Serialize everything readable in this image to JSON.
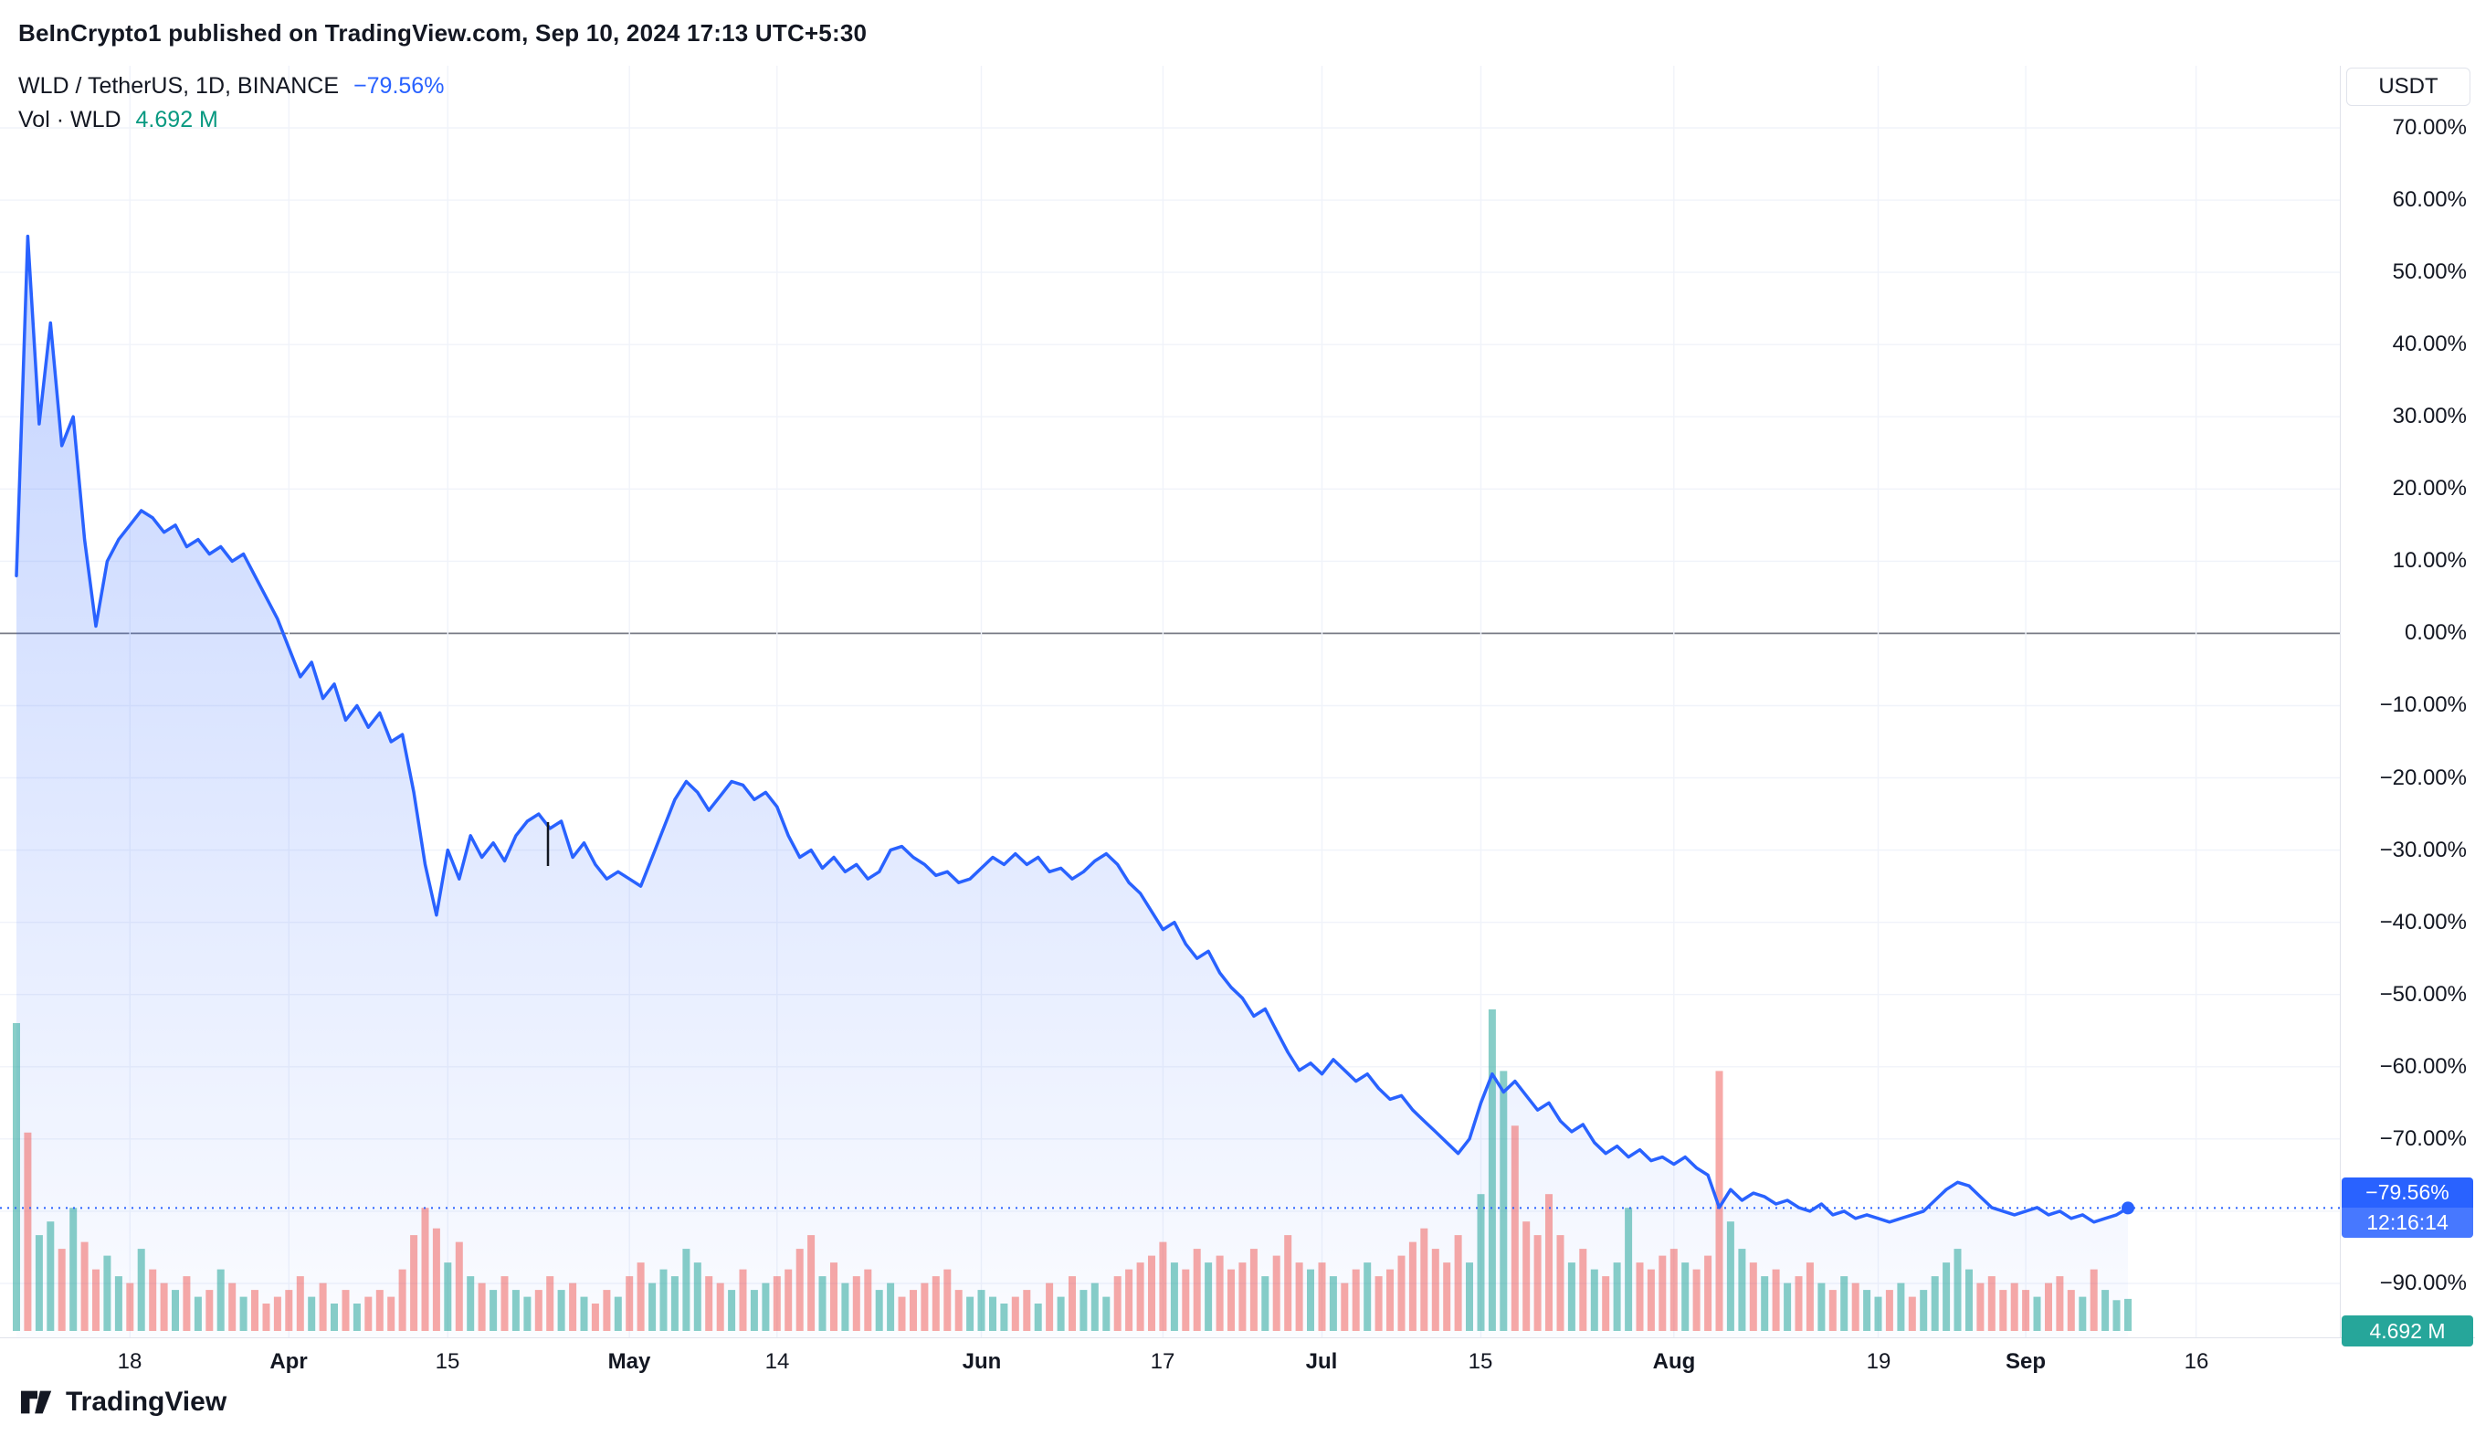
{
  "header": {
    "published_line": "BeInCrypto1 published on TradingView.com, Sep 10, 2024 17:13 UTC+5:30"
  },
  "legend": {
    "symbol_title": "WLD / TetherUS, 1D, BINANCE",
    "change_pct": "−79.56%",
    "volume_label": "Vol · WLD",
    "volume_value": "4.692 M"
  },
  "price_axis": {
    "currency_button": "USDT",
    "last_price_badge": {
      "label": "−79.56%",
      "countdown": "12:16:14"
    },
    "volume_badge": {
      "label": "4.692 M"
    }
  },
  "footer": {
    "brand": "TradingView"
  },
  "colors": {
    "line": "#2962ff",
    "area_top": "rgba(41,98,255,0.28)",
    "area_bottom": "rgba(41,98,255,0.02)",
    "vol_up": "rgba(38,166,154,0.55)",
    "vol_down": "rgba(239,83,80,0.5)",
    "grid": "#f0f3fa",
    "zero_line": "#787b86",
    "separator": "#e0e3eb",
    "price_badge_bg": "#2962ff",
    "volume_badge_bg": "#26a69a",
    "text": "#131722"
  },
  "chart_data": {
    "type": "line",
    "title": "WLD / TetherUS, 1D, BINANCE",
    "pair": "WLD/USDT",
    "interval": "1D",
    "exchange": "BINANCE",
    "y_unit": "percent change",
    "ylim": [
      -90,
      70
    ],
    "grid": true,
    "last_value_pct": -79.56,
    "last_countdown": "12:16:14",
    "current_volume_m": 4.692,
    "y_ticks": [
      {
        "value": 70,
        "label": "70.00%"
      },
      {
        "value": 60,
        "label": "60.00%"
      },
      {
        "value": 50,
        "label": "50.00%"
      },
      {
        "value": 40,
        "label": "40.00%"
      },
      {
        "value": 30,
        "label": "30.00%"
      },
      {
        "value": 20,
        "label": "20.00%"
      },
      {
        "value": 10,
        "label": "10.00%"
      },
      {
        "value": 0,
        "label": "0.00%"
      },
      {
        "value": -10,
        "label": "−10.00%"
      },
      {
        "value": -20,
        "label": "−20.00%"
      },
      {
        "value": -30,
        "label": "−30.00%"
      },
      {
        "value": -40,
        "label": "−40.00%"
      },
      {
        "value": -50,
        "label": "−50.00%"
      },
      {
        "value": -60,
        "label": "−60.00%"
      },
      {
        "value": -70,
        "label": "−70.00%"
      },
      {
        "value": -80,
        "label": "−80.00%"
      },
      {
        "value": -90,
        "label": "−90.00%"
      }
    ],
    "x_ticks": [
      {
        "label": "18",
        "day": 10,
        "is_month": false
      },
      {
        "label": "Apr",
        "day": 24,
        "is_month": true
      },
      {
        "label": "15",
        "day": 38,
        "is_month": false
      },
      {
        "label": "May",
        "day": 54,
        "is_month": true
      },
      {
        "label": "14",
        "day": 67,
        "is_month": false
      },
      {
        "label": "Jun",
        "day": 85,
        "is_month": true
      },
      {
        "label": "17",
        "day": 101,
        "is_month": false
      },
      {
        "label": "Jul",
        "day": 115,
        "is_month": true
      },
      {
        "label": "15",
        "day": 129,
        "is_month": false
      },
      {
        "label": "Aug",
        "day": 146,
        "is_month": true
      },
      {
        "label": "19",
        "day": 164,
        "is_month": false
      },
      {
        "label": "Sep",
        "day": 177,
        "is_month": true
      },
      {
        "label": "16",
        "day": 192,
        "is_month": false
      }
    ],
    "pct_series": [
      8,
      55,
      29,
      43,
      26,
      30,
      13,
      1,
      10,
      13,
      15,
      17,
      16,
      14,
      15,
      12,
      13,
      11,
      12,
      10,
      11,
      8,
      5,
      2,
      -2,
      -6,
      -4,
      -9,
      -7,
      -12,
      -10,
      -13,
      -11,
      -15,
      -14,
      -22,
      -32,
      -39,
      -30,
      -34,
      -28,
      -31,
      -29,
      -31.5,
      -28,
      -26,
      -25,
      -27,
      -26,
      -31,
      -29,
      -32,
      -34,
      -33,
      -34,
      -35,
      -31,
      -27,
      -23,
      -20.5,
      -22,
      -24.5,
      -22.5,
      -20.5,
      -21,
      -23,
      -22,
      -24,
      -28,
      -31,
      -30,
      -32.5,
      -31,
      -33,
      -32,
      -34,
      -33,
      -30,
      -29.5,
      -31,
      -32,
      -33.5,
      -33,
      -34.5,
      -34,
      -32.5,
      -31,
      -32,
      -30.5,
      -32,
      -31,
      -33,
      -32.5,
      -34,
      -33,
      -31.5,
      -30.5,
      -32,
      -34.5,
      -36,
      -38.5,
      -41,
      -40,
      -43,
      -45,
      -44,
      -47,
      -49,
      -50.5,
      -53,
      -52,
      -55,
      -58,
      -60.5,
      -59.5,
      -61,
      -59,
      -60.5,
      -62,
      -61,
      -63,
      -64.5,
      -64,
      -66,
      -67.5,
      -69,
      -70.5,
      -72,
      -70,
      -65,
      -61,
      -63.5,
      -62,
      -64,
      -66,
      -65,
      -67.5,
      -69,
      -68,
      -70.5,
      -72,
      -71,
      -72.5,
      -71.5,
      -73,
      -72.5,
      -73.5,
      -72.5,
      -74,
      -75,
      -79.5,
      -77,
      -78.5,
      -77.5,
      -78,
      -79,
      -78.5,
      -79.5,
      -80,
      -79,
      -80.5,
      -80,
      -81,
      -80.5,
      -81,
      -81.5,
      -81,
      -80.5,
      -80,
      -78.5,
      -77,
      -76,
      -76.5,
      -78,
      -79.5,
      -80,
      -80.5,
      -80,
      -79.5,
      -80.5,
      -80,
      -81,
      -80.5,
      -81.5,
      -81,
      -80.5,
      -79.56
    ],
    "volume_series_m": [
      45,
      29,
      14,
      16,
      12,
      18,
      13,
      9,
      11,
      8,
      7,
      12,
      9,
      7,
      6,
      8,
      5,
      6,
      9,
      7,
      5,
      6,
      4,
      5,
      6,
      8,
      5,
      7,
      4,
      6,
      4,
      5,
      6,
      5,
      9,
      14,
      18,
      15,
      10,
      13,
      8,
      7,
      6,
      8,
      6,
      5,
      6,
      8,
      6,
      7,
      5,
      4,
      6,
      5,
      8,
      10,
      7,
      9,
      8,
      12,
      10,
      8,
      7,
      6,
      9,
      6,
      7,
      8,
      9,
      12,
      14,
      8,
      10,
      7,
      8,
      9,
      6,
      7,
      5,
      6,
      7,
      8,
      9,
      6,
      5,
      6,
      5,
      4,
      5,
      6,
      4,
      7,
      5,
      8,
      6,
      7,
      5,
      8,
      9,
      10,
      11,
      13,
      10,
      9,
      12,
      10,
      11,
      9,
      10,
      12,
      8,
      11,
      14,
      10,
      9,
      10,
      8,
      7,
      9,
      10,
      8,
      9,
      11,
      13,
      15,
      12,
      10,
      14,
      10,
      20,
      47,
      38,
      30,
      16,
      14,
      20,
      14,
      10,
      12,
      9,
      8,
      10,
      18,
      10,
      9,
      11,
      12,
      10,
      9,
      11,
      38,
      16,
      12,
      10,
      8,
      9,
      7,
      8,
      10,
      7,
      6,
      8,
      7,
      6,
      5,
      6,
      7,
      5,
      6,
      8,
      10,
      12,
      9,
      7,
      8,
      6,
      7,
      6,
      5,
      7,
      8,
      6,
      5,
      9,
      6,
      4.5,
      4.692
    ],
    "volume_direction": "grggrgrrggrgrrgrgrgrgrrrrrgrgrgrrrrrrrgrgrgrggrrgrgrrgrrgggggrrgrggrrrrgrgrrggrrrrrrggggrrgrgrgggrrrrrgrrgrrrrgrrrgrgrrgrrrrrrrrggggrrrrrgrgrggrrrrgrrrggrgrgrrgrgrggrgrgggggrrrrrgrrrgrggg"
  }
}
